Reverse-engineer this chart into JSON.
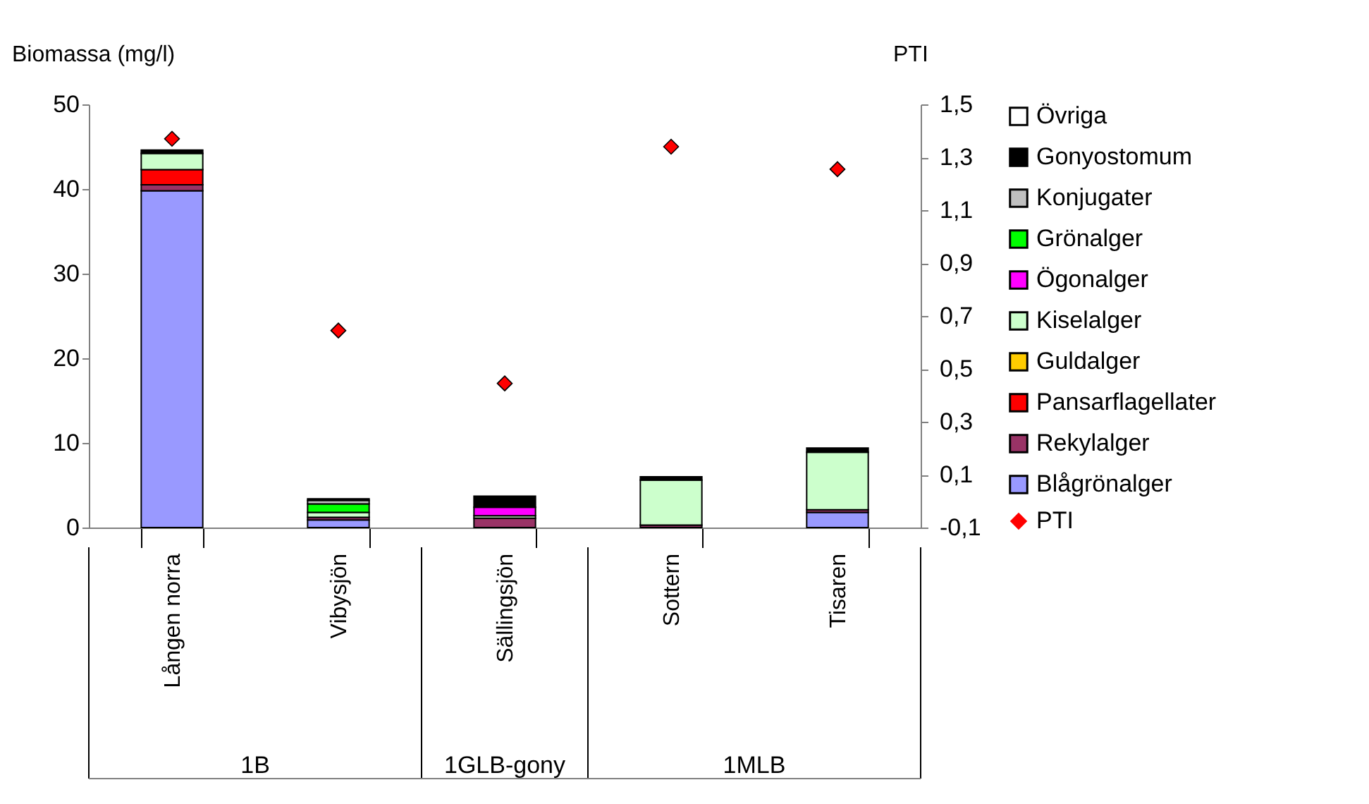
{
  "chart_data": {
    "type": "bar",
    "stacked": true,
    "ylabel": "Biomassa (mg/l)",
    "y2label": "PTI",
    "categories": [
      "Lången norra",
      "Vibysjön",
      "Sällingsjön",
      "Sottern",
      "Tisaren"
    ],
    "series": [
      {
        "name": "Blågrönalger",
        "color": "#9999ff",
        "values": [
          39.8,
          0.9,
          0,
          0,
          1.8
        ]
      },
      {
        "name": "Rekylalger",
        "color": "#993366",
        "values": [
          0.7,
          0.3,
          1.1,
          0.3,
          0.3
        ]
      },
      {
        "name": "Pansarflagellater",
        "color": "#ff0000",
        "values": [
          1.8,
          0,
          0,
          0,
          0
        ]
      },
      {
        "name": "Guldalger",
        "color": "#ffcc00",
        "values": [
          0,
          0,
          0,
          0,
          0
        ]
      },
      {
        "name": "Kiselalger",
        "color": "#ccffcc",
        "values": [
          1.9,
          0.6,
          0.3,
          5.3,
          6.8
        ]
      },
      {
        "name": "Ögonalger",
        "color": "#ff00ff",
        "values": [
          0,
          0,
          1.0,
          0,
          0
        ]
      },
      {
        "name": "Grönalger",
        "color": "#00ff00",
        "values": [
          0,
          1.0,
          0,
          0,
          0
        ]
      },
      {
        "name": "Konjugater",
        "color": "#c0c0c0",
        "values": [
          0,
          0.4,
          0,
          0,
          0
        ]
      },
      {
        "name": "Gonyostomum",
        "color": "#000000",
        "values": [
          0.4,
          0.2,
          1.3,
          0.4,
          0.5
        ]
      },
      {
        "name": "Övriga",
        "color": "#ffffff",
        "values": [
          0,
          0,
          0,
          0,
          0
        ]
      },
      {
        "name": "PTI",
        "type": "scatter",
        "axis": "y2",
        "marker": "diamond",
        "color": "#ff0000",
        "values": [
          1.37,
          0.645,
          0.445,
          1.34,
          1.255
        ]
      }
    ],
    "ylim": [
      0,
      50
    ],
    "yticks": [
      0,
      10,
      20,
      30,
      40,
      50
    ],
    "y2lim": [
      -0.1,
      1.5
    ],
    "y2ticks": [
      {
        "value": -0.1,
        "label": "-0,1"
      },
      {
        "value": 0.1,
        "label": "0,1"
      },
      {
        "value": 0.3,
        "label": "0,3"
      },
      {
        "value": 0.5,
        "label": "0,5"
      },
      {
        "value": 0.7,
        "label": "0,7"
      },
      {
        "value": 0.9,
        "label": "0,9"
      },
      {
        "value": 1.1,
        "label": "1,1"
      },
      {
        "value": 1.3,
        "label": "1,3"
      },
      {
        "value": 1.5,
        "label": "1,5"
      }
    ],
    "annotations": [
      "1B",
      "1GLB-gony",
      "1MLB"
    ],
    "legend": "right",
    "grid": false
  }
}
